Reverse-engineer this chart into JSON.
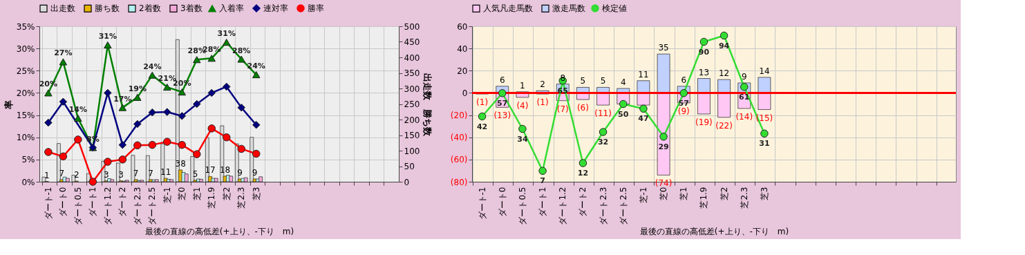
{
  "chart_data": [
    {
      "type": "bar",
      "xlabel": "最後の直線の高低差(+上り、-下り　m)",
      "ylabel": "率",
      "y2label": "出走数　勝ち数",
      "legend": "top",
      "grid": true,
      "categories": [
        "ダート-1",
        "ダート0",
        "ダート0.5",
        "ダート1",
        "ダート1.2",
        "ダート2",
        "ダート2.3",
        "ダート2.5",
        "芝-1",
        "芝0",
        "芝1",
        "芝1.9",
        "芝2",
        "芝2.3",
        "芝3",
        null,
        null,
        null,
        null,
        null,
        null,
        null,
        null,
        null
      ],
      "ylim": [
        0,
        35
      ],
      "yticks": [
        {
          "value": 0,
          "label": "0%"
        },
        {
          "value": 5,
          "label": "5%"
        },
        {
          "value": 10,
          "label": "10%"
        },
        {
          "value": 15,
          "label": "15%"
        },
        {
          "value": 20,
          "label": "20%"
        },
        {
          "value": 25,
          "label": "25%"
        },
        {
          "value": 30,
          "label": "30%"
        },
        {
          "value": 35,
          "label": "35%"
        }
      ],
      "y2lim": [
        0,
        500
      ],
      "y2ticks": [
        0,
        50,
        100,
        150,
        200,
        250,
        300,
        350,
        400,
        450,
        500
      ],
      "series": [
        {
          "name": "出走数",
          "axis": "y2",
          "color": "#dcdcdc",
          "values": [
            15,
            123,
            21,
            26,
            66,
            60,
            85,
            84,
            122,
            457,
            81,
            142,
            180,
            122,
            143,
            null,
            null,
            null,
            null,
            null,
            null,
            null,
            null,
            null
          ]
        },
        {
          "name": "勝ち数",
          "axis": "y2",
          "color": "#e8b400",
          "values": [
            1,
            7,
            2,
            null,
            3,
            3,
            7,
            7,
            11,
            38,
            5,
            17,
            18,
            9,
            9,
            null,
            null,
            null,
            null,
            null,
            null,
            null,
            null,
            null
          ],
          "value_labels": [
            "1",
            "7",
            "2",
            null,
            "3",
            "3",
            "7",
            "7",
            "11",
            "38",
            "5",
            "17",
            "18",
            "9",
            "9",
            null,
            null,
            null,
            null,
            null,
            null,
            null,
            null,
            null
          ]
        },
        {
          "name": "2着数",
          "axis": "y2",
          "color": "#b4f0f0",
          "values": [
            null,
            15,
            null,
            2,
            10,
            2,
            4,
            6,
            8,
            30,
            9,
            11,
            21,
            11,
            9,
            null,
            null,
            null,
            null,
            null,
            null,
            null,
            null,
            null
          ]
        },
        {
          "name": "3着数",
          "axis": "y2",
          "color": "#f4a8d8",
          "values": [
            null,
            11,
            null,
            null,
            7,
            5,
            5,
            7,
            7,
            25,
            8,
            11,
            18,
            13,
            16,
            null,
            null,
            null,
            null,
            null,
            null,
            null,
            null,
            null
          ]
        },
        {
          "name": "入着率",
          "type": "line",
          "color": "#008000",
          "marker": "triangle",
          "values": [
            20,
            27,
            14.3,
            7.7,
            30.8,
            16.7,
            19,
            24,
            21.3,
            20.2,
            27.5,
            27.8,
            31.4,
            27.6,
            24.1,
            null,
            null,
            null,
            null,
            null,
            null,
            null,
            null,
            null
          ],
          "value_labels": [
            "20%",
            "27%",
            "14%",
            "8%",
            "31%",
            "17%",
            "19%",
            "24%",
            "21%",
            "20%",
            "28%",
            "28%",
            "31%",
            "28%",
            "24%",
            null,
            null,
            null,
            null,
            null,
            null,
            null,
            null,
            null
          ]
        },
        {
          "name": "連対率",
          "type": "line",
          "color": "#000080",
          "marker": "diamond",
          "values": [
            13.3,
            18,
            null,
            7.7,
            20,
            8.3,
            13,
            15.6,
            15.7,
            14.8,
            17.5,
            20,
            21.4,
            16.7,
            12.8,
            null,
            null,
            null,
            null,
            null,
            null,
            null,
            null,
            null
          ]
        },
        {
          "name": "勝率",
          "type": "line",
          "color": "#ff0000",
          "marker": "circle",
          "values": [
            6.7,
            5.7,
            9.5,
            0,
            4.5,
            5,
            8.2,
            8.3,
            9,
            8.3,
            6.2,
            12,
            10,
            7.4,
            6.3,
            null,
            null,
            null,
            null,
            null,
            null,
            null,
            null,
            null
          ]
        }
      ]
    },
    {
      "type": "bar",
      "xlabel": "最後の直線の高低差(+上り、-下り　m)",
      "legend": "top",
      "grid": true,
      "stacked": true,
      "categories": [
        "ダート-1",
        "ダート0",
        "ダート0.5",
        "ダート1",
        "ダート1.2",
        "ダート2",
        "ダート2.3",
        "ダート2.5",
        "芝-1",
        "芝0",
        "芝1",
        "芝1.9",
        "芝2",
        "芝2.3",
        "芝3",
        null,
        null,
        null,
        null,
        null,
        null,
        null,
        null,
        null
      ],
      "ylim": [
        -80,
        60
      ],
      "yticks": [
        {
          "value": -80,
          "label": "(80)"
        },
        {
          "value": -60,
          "label": "(60)"
        },
        {
          "value": -40,
          "label": "(40)"
        },
        {
          "value": -20,
          "label": "(20)"
        },
        0,
        20,
        40,
        60
      ],
      "y2lim": [
        0,
        100
      ],
      "ref_lines": [
        {
          "axis": "y",
          "value": 0,
          "color": "#ff0000"
        }
      ],
      "series": [
        {
          "name": "人気凡走馬数",
          "color": "#ffc8f4",
          "values": [
            -1,
            -13,
            -4,
            -1,
            -7,
            -6,
            -11,
            -10,
            -11,
            -74,
            -9,
            -19,
            -22,
            -14,
            -15,
            null,
            null,
            null,
            null,
            null,
            null,
            null,
            null,
            null
          ],
          "value_labels": [
            "(1)",
            "(13)",
            "(4)",
            "(1)",
            "(7)",
            "(6)",
            "(11)",
            null,
            null,
            "(74)",
            "(9)",
            "(19)",
            "(22)",
            "(14)",
            "(15)",
            null,
            null,
            null,
            null,
            null,
            null,
            null,
            null,
            null
          ]
        },
        {
          "name": "激走馬数",
          "color": "#c0d0ff",
          "values": [
            null,
            6,
            1,
            2,
            8,
            5,
            5,
            4,
            11,
            35,
            6,
            13,
            12,
            9,
            14,
            null,
            null,
            null,
            null,
            null,
            null,
            null,
            null,
            null
          ],
          "value_labels": [
            null,
            "6",
            "1",
            "2",
            "8",
            "5",
            "5",
            "4",
            "11",
            "35",
            "6",
            "13",
            "12",
            "9",
            "14",
            null,
            null,
            null,
            null,
            null,
            null,
            null,
            null,
            null
          ]
        },
        {
          "name": "検定値",
          "type": "line",
          "axis": "y2",
          "color": "#33dd33",
          "marker": "circle",
          "values": [
            42,
            57,
            34,
            7,
            65,
            12,
            32,
            50,
            47,
            29,
            57,
            90,
            94,
            61,
            31,
            null,
            null,
            null,
            null,
            null,
            null,
            null,
            null,
            null
          ],
          "value_labels": [
            "42",
            "57",
            "34",
            "7",
            "65",
            "12",
            "32",
            "50",
            "47",
            "29",
            "57",
            "90",
            "94",
            "61",
            "31",
            null,
            null,
            null,
            null,
            null,
            null,
            null,
            null,
            null
          ]
        }
      ]
    }
  ]
}
